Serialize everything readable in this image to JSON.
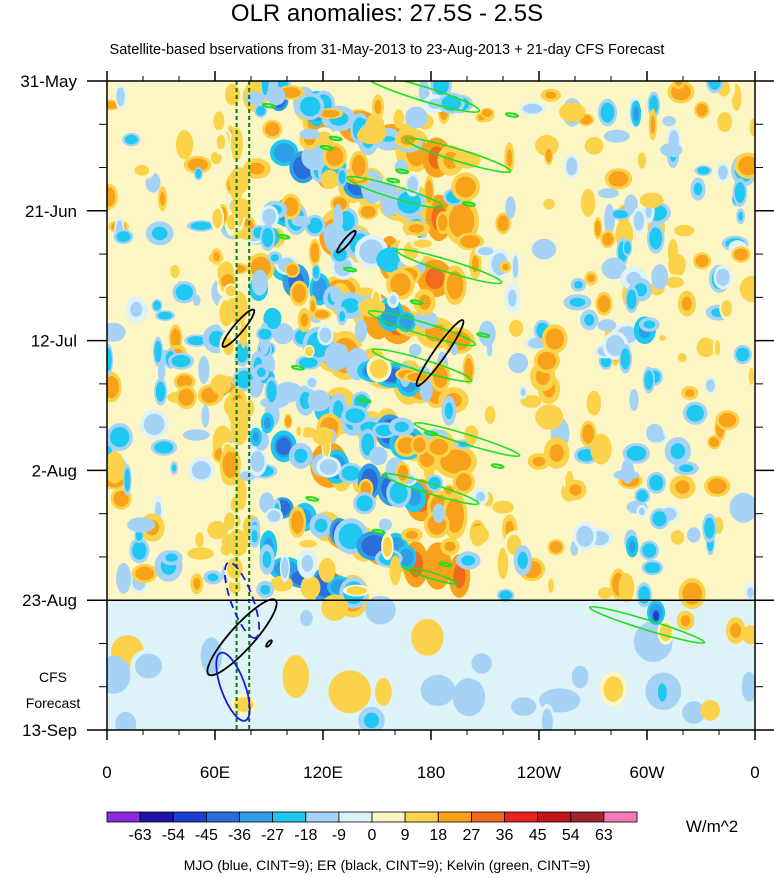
{
  "chart_data": {
    "type": "heatmap",
    "title": "OLR anomalies: 27.5S - 2.5S",
    "subtitle": "Satellite-based bservations from 31-May-2013 to 23-Aug-2013 + 21-day CFS Forecast",
    "x_ticks": [
      "0",
      "60E",
      "120E",
      "180",
      "120W",
      "60W",
      "0"
    ],
    "x_tick_lon": [
      0,
      60,
      120,
      180,
      240,
      300,
      360
    ],
    "xlim": [
      0,
      360
    ],
    "y_ticks": [
      "31-May",
      "21-Jun",
      "12-Jul",
      "2-Aug",
      "23-Aug",
      "13-Sep"
    ],
    "y_tick_day": [
      0,
      21,
      42,
      63,
      84,
      105
    ],
    "ylim": [
      0,
      105
    ],
    "forecast_start_day": 84,
    "forecast_label": [
      "CFS",
      "Forecast"
    ],
    "colorbar": {
      "levels": [
        "-63",
        "-54",
        "-45",
        "-36",
        "-27",
        "-18",
        "-9",
        "0",
        "9",
        "18",
        "27",
        "36",
        "45",
        "54",
        "63"
      ],
      "colors": [
        "#8a2be2",
        "#1e14a8",
        "#1b3fcf",
        "#2b6ed9",
        "#2e9fe6",
        "#1ec8f0",
        "#a6d3f5",
        "#ddf3f7",
        "#fbf6c4",
        "#fbd34a",
        "#f7a21a",
        "#f26a1b",
        "#e8221c",
        "#c4141e",
        "#a1242c",
        "#f57ab8"
      ],
      "units": "W/m^2"
    },
    "footnote": "MJO (blue, CINT=9); ER (black, CINT=9); Kelvin (green, CINT=9)",
    "mjo_dashed_lon": [
      72,
      79
    ],
    "filter_colors": {
      "mjo": "#1a1ad6",
      "er": "#000000",
      "kelvin": "#22dd22",
      "guide": "#0a7a0a"
    }
  }
}
